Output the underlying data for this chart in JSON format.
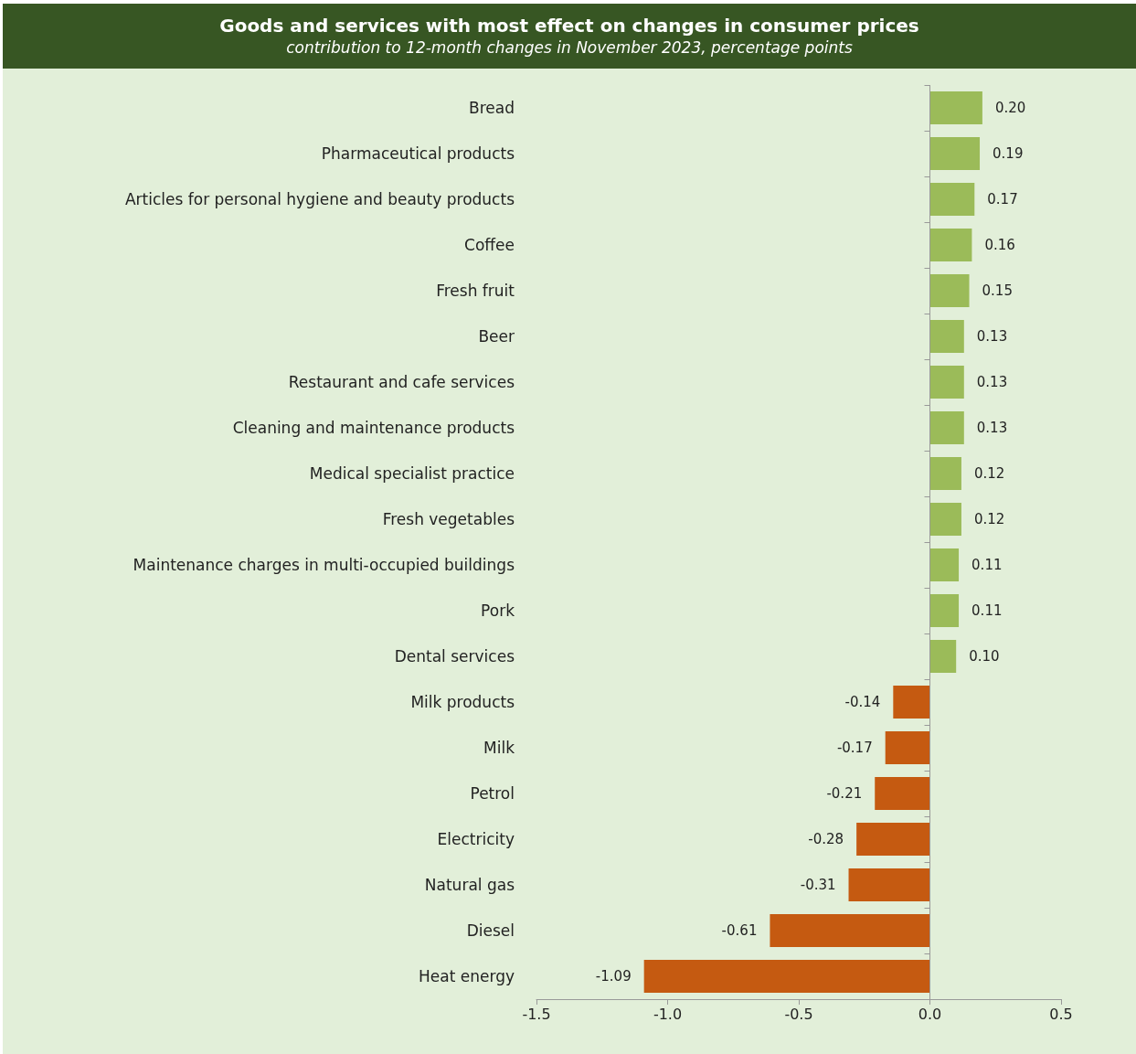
{
  "chart_data": {
    "type": "bar",
    "orientation": "horizontal",
    "title": "Goods and services with most effect on changes in consumer prices",
    "subtitle": "contribution to 12-month changes in November 2023, percentage points",
    "categories": [
      "Bread",
      "Pharmaceutical products",
      "Articles for personal hygiene and beauty products",
      "Coffee",
      "Fresh fruit",
      "Beer",
      "Restaurant and cafe services",
      "Cleaning and maintenance products",
      "Medical specialist practice",
      "Fresh vegetables",
      "Maintenance charges in multi-occupied buildings",
      "Pork",
      "Dental services",
      "Milk products",
      "Milk",
      "Petrol",
      "Electricity",
      "Natural gas",
      "Diesel",
      "Heat energy"
    ],
    "values": [
      0.2,
      0.19,
      0.17,
      0.16,
      0.15,
      0.13,
      0.13,
      0.13,
      0.12,
      0.12,
      0.11,
      0.11,
      0.1,
      -0.14,
      -0.17,
      -0.21,
      -0.28,
      -0.31,
      -0.61,
      -1.09
    ],
    "value_labels": [
      "0.20",
      "0.19",
      "0.17",
      "0.16",
      "0.15",
      "0.13",
      "0.13",
      "0.13",
      "0.12",
      "0.12",
      "0.11",
      "0.11",
      "0.10",
      "-0.14",
      "-0.17",
      "-0.21",
      "-0.28",
      "-0.31",
      "-0.61",
      "-1.09"
    ],
    "colors": [
      "#9bbb59",
      "#9bbb59",
      "#9bbb59",
      "#9bbb59",
      "#9bbb59",
      "#9bbb59",
      "#9bbb59",
      "#9bbb59",
      "#9bbb59",
      "#9bbb59",
      "#9bbb59",
      "#9bbb59",
      "#9bbb59",
      "#c55a11",
      "#c55a11",
      "#c55a11",
      "#c55a11",
      "#c55a11",
      "#c55a11",
      "#c55a11"
    ],
    "xlim": [
      -1.5,
      0.5
    ],
    "xticks": [
      {
        "value": -1.5,
        "label": "-1.5"
      },
      {
        "value": -1.0,
        "label": "-1.0"
      },
      {
        "value": -0.5,
        "label": "-0.5"
      },
      {
        "value": 0,
        "label": "0.0"
      },
      {
        "value": 0.5,
        "label": "0.5"
      }
    ],
    "ref_lines": [
      {
        "axis": "x",
        "value": 0,
        "color": "#999999"
      }
    ],
    "grid": false
  }
}
